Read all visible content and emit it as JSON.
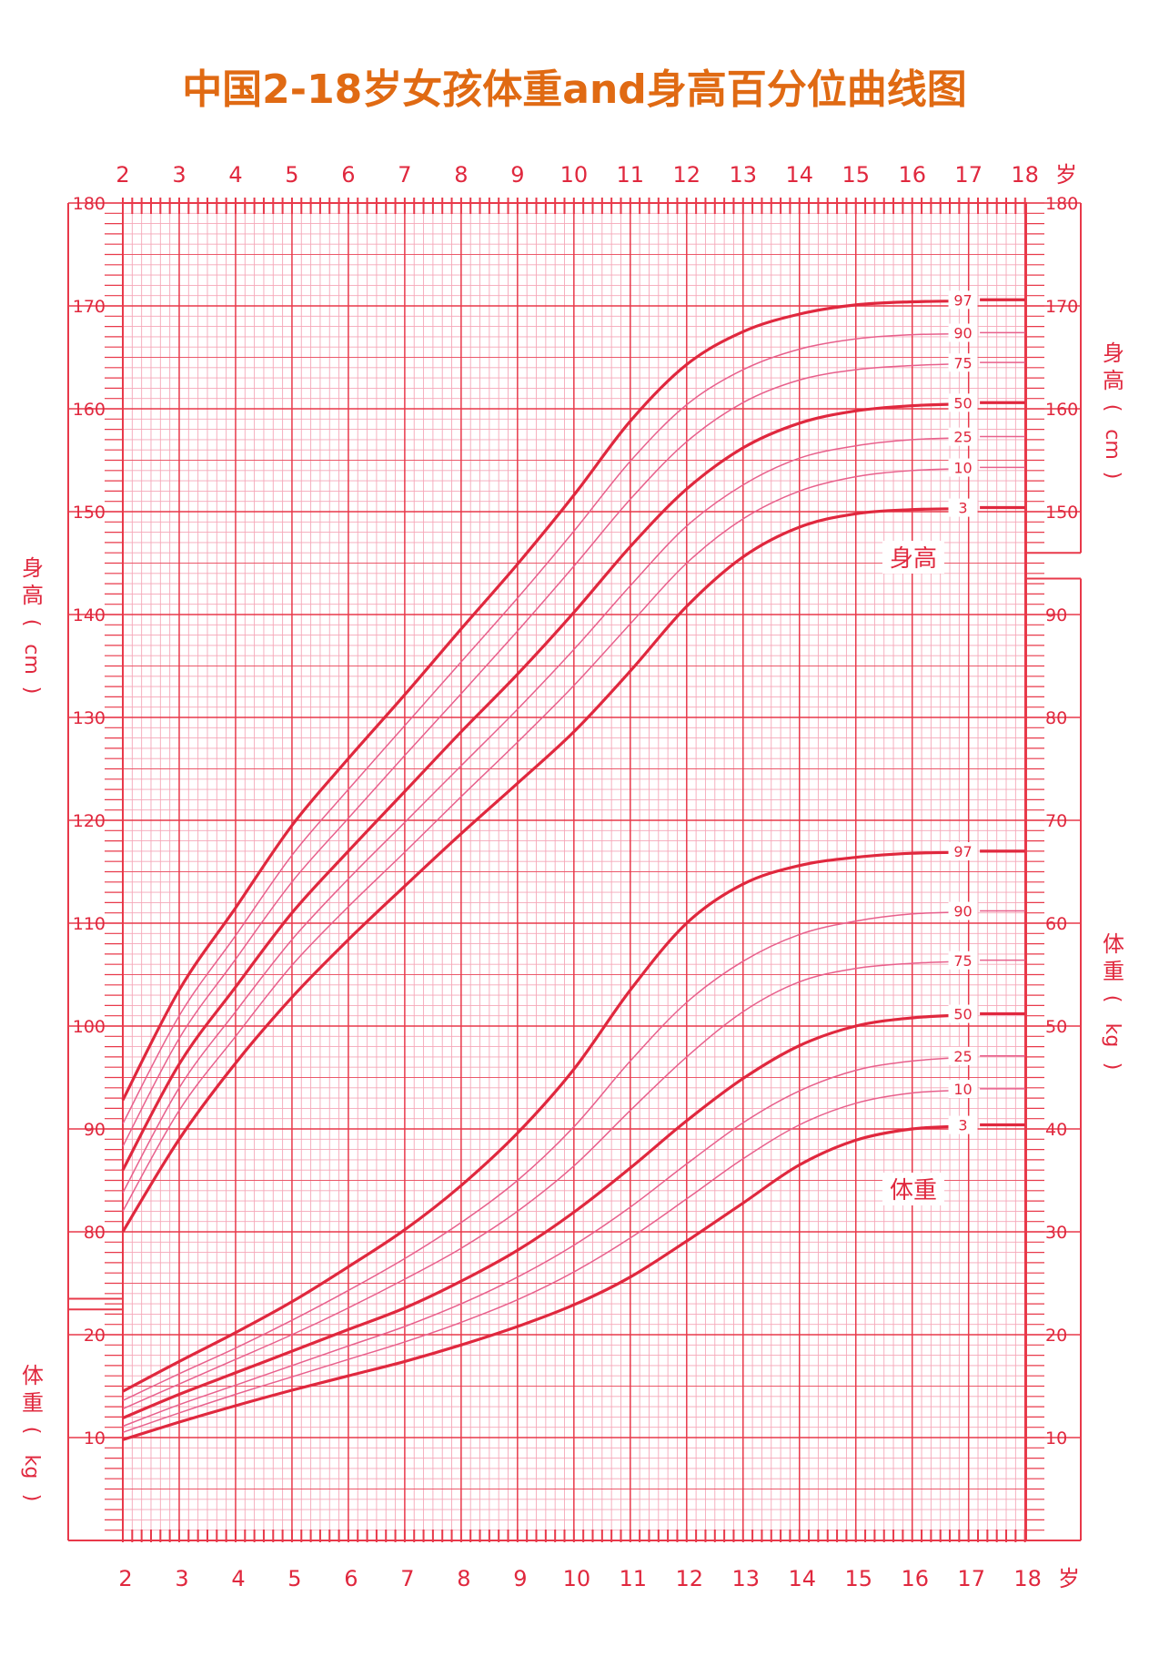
{
  "title": "中国2-18岁女孩体重and身高百分位曲线图",
  "colors": {
    "major": "#e8394a",
    "minor": "#f5a7b8",
    "curve_main": "#e0283e",
    "curve_thin": "#e8608c",
    "text": "#e0283e",
    "title": "#e06a13"
  },
  "chart_data": {
    "type": "line",
    "title": "中国2-18岁女孩体重and身高百分位曲线图",
    "x_ticks": [
      2,
      3,
      4,
      5,
      6,
      7,
      8,
      9,
      10,
      11,
      12,
      13,
      14,
      15,
      16,
      17,
      18
    ],
    "x_unit": "岁",
    "xlim": [
      2,
      18
    ],
    "height_axis": {
      "label_chars": [
        "身",
        "高",
        "(",
        "cm",
        ")"
      ],
      "range": [
        70,
        180
      ],
      "left_ticks": [
        80,
        90,
        100,
        110,
        120,
        130,
        140,
        150,
        160,
        170,
        180
      ],
      "right_ticks": [
        150,
        160,
        170,
        180
      ]
    },
    "weight_axis": {
      "label_chars": [
        "体",
        "重",
        "(",
        "kg",
        ")"
      ],
      "range": [
        0,
        95
      ],
      "left_ticks": [
        10,
        20
      ],
      "right_ticks": [
        10,
        20,
        30,
        40,
        50,
        60,
        70,
        80,
        90
      ]
    },
    "height_label": "身高",
    "weight_label": "体重",
    "x": [
      2,
      3,
      4,
      5,
      6,
      7,
      8,
      9,
      10,
      11,
      12,
      13,
      14,
      15,
      16,
      17,
      18
    ],
    "height_series": [
      {
        "name": "97",
        "bold": true,
        "values": [
          92.8,
          103.5,
          111.5,
          119.5,
          126.0,
          132.2,
          138.6,
          144.9,
          151.6,
          158.8,
          164.3,
          167.5,
          169.2,
          170.1,
          170.4,
          170.5,
          170.6
        ]
      },
      {
        "name": "90",
        "bold": false,
        "values": [
          90.5,
          101.0,
          108.8,
          116.6,
          123.0,
          129.2,
          135.4,
          141.6,
          148.1,
          154.9,
          160.4,
          163.8,
          165.8,
          166.8,
          167.2,
          167.3,
          167.4
        ]
      },
      {
        "name": "75",
        "bold": false,
        "values": [
          88.3,
          98.8,
          106.5,
          114.0,
          120.2,
          126.3,
          132.3,
          138.4,
          144.7,
          151.2,
          156.8,
          160.6,
          162.8,
          163.8,
          164.2,
          164.4,
          164.5
        ]
      },
      {
        "name": "50",
        "bold": true,
        "values": [
          86.0,
          96.3,
          103.8,
          111.0,
          117.0,
          122.8,
          128.6,
          134.2,
          140.2,
          146.6,
          152.2,
          156.2,
          158.6,
          159.8,
          160.3,
          160.5,
          160.6
        ]
      },
      {
        "name": "25",
        "bold": false,
        "values": [
          83.8,
          94.0,
          101.4,
          108.4,
          114.3,
          119.8,
          125.3,
          130.8,
          136.6,
          142.8,
          148.6,
          152.6,
          155.2,
          156.4,
          157.0,
          157.2,
          157.3
        ]
      },
      {
        "name": "10",
        "bold": false,
        "values": [
          82.0,
          91.8,
          99.0,
          105.9,
          111.6,
          116.9,
          122.3,
          127.6,
          133.1,
          139.1,
          145.0,
          149.3,
          152.0,
          153.4,
          154.0,
          154.2,
          154.3
        ]
      },
      {
        "name": "3",
        "bold": true,
        "values": [
          80.0,
          89.0,
          96.4,
          102.8,
          108.4,
          113.6,
          118.7,
          123.6,
          128.6,
          134.5,
          140.8,
          145.6,
          148.5,
          149.8,
          150.2,
          150.3,
          150.4
        ]
      }
    ],
    "weight_series": [
      {
        "name": "97",
        "bold": true,
        "values": [
          14.5,
          17.4,
          20.2,
          23.2,
          26.6,
          30.2,
          34.5,
          39.6,
          45.8,
          53.5,
          60.0,
          63.8,
          65.6,
          66.4,
          66.8,
          66.9,
          67.0
        ]
      },
      {
        "name": "90",
        "bold": false,
        "values": [
          13.6,
          16.2,
          18.7,
          21.4,
          24.3,
          27.4,
          30.9,
          35.0,
          40.2,
          46.6,
          52.3,
          56.3,
          58.9,
          60.2,
          60.9,
          61.1,
          61.2
        ]
      },
      {
        "name": "75",
        "bold": false,
        "values": [
          12.8,
          15.2,
          17.6,
          20.0,
          22.6,
          25.4,
          28.4,
          32.0,
          36.4,
          41.8,
          47.0,
          51.4,
          54.3,
          55.6,
          56.1,
          56.3,
          56.4
        ]
      },
      {
        "name": "50",
        "bold": true,
        "values": [
          11.9,
          14.2,
          16.3,
          18.4,
          20.5,
          22.6,
          25.2,
          28.2,
          31.9,
          36.2,
          40.8,
          44.9,
          48.1,
          50.0,
          50.8,
          51.1,
          51.2
        ]
      },
      {
        "name": "25",
        "bold": false,
        "values": [
          11.1,
          13.2,
          15.1,
          17.0,
          18.9,
          20.8,
          23.0,
          25.6,
          28.7,
          32.4,
          36.6,
          40.6,
          43.7,
          45.7,
          46.6,
          47.0,
          47.1
        ]
      },
      {
        "name": "10",
        "bold": false,
        "values": [
          10.5,
          12.4,
          14.2,
          15.9,
          17.6,
          19.3,
          21.2,
          23.4,
          26.1,
          29.4,
          33.2,
          37.1,
          40.4,
          42.5,
          43.5,
          43.8,
          43.9
        ]
      },
      {
        "name": "3",
        "bold": true,
        "values": [
          9.8,
          11.5,
          13.1,
          14.6,
          16.0,
          17.4,
          19.0,
          20.8,
          22.9,
          25.6,
          29.1,
          32.8,
          36.5,
          38.9,
          40.0,
          40.3,
          40.4
        ]
      }
    ]
  }
}
